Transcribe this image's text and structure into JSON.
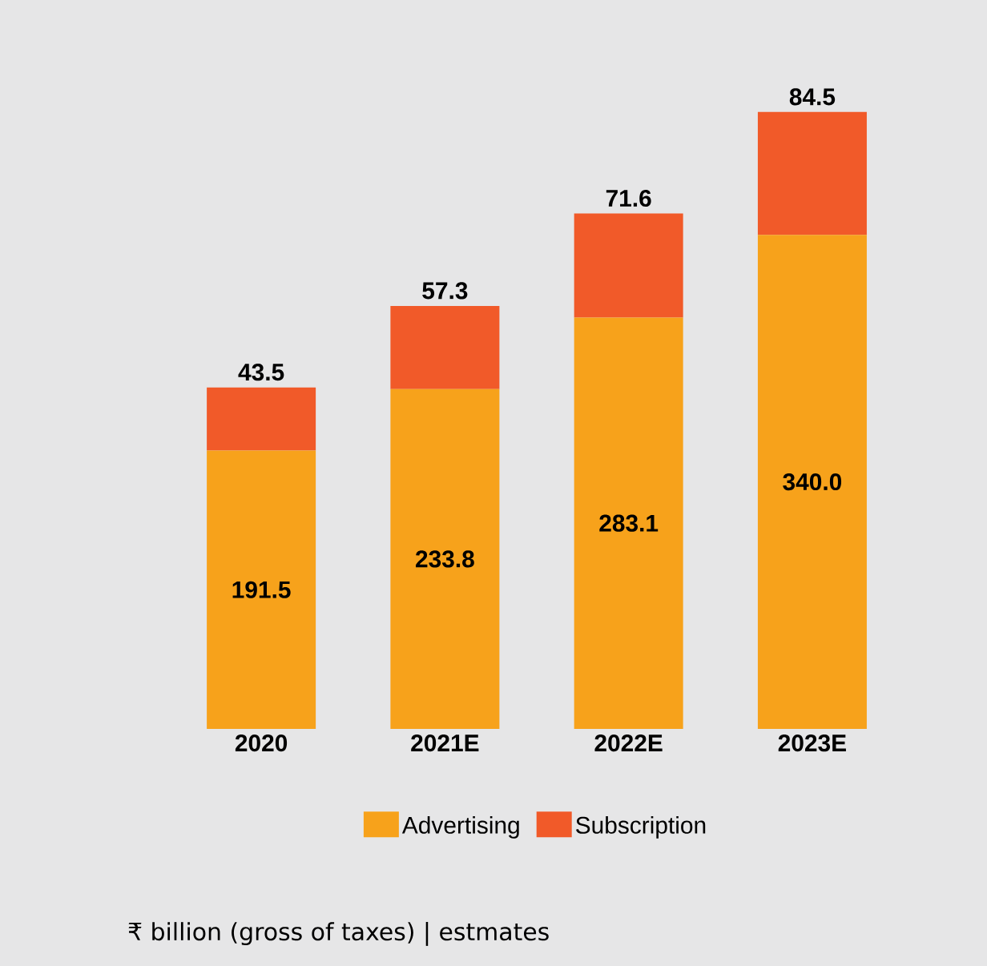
{
  "chart_data": {
    "type": "bar",
    "stacked": true,
    "categories": [
      "2020",
      "2021E",
      "2022E",
      "2023E"
    ],
    "series": [
      {
        "name": "Advertising",
        "color": "#f7a21b",
        "values": [
          191.5,
          233.8,
          283.1,
          340.0
        ],
        "value_labels": [
          "191.5",
          "233.8",
          "283.1",
          "340.0"
        ]
      },
      {
        "name": "Subscription",
        "color": "#f15a29",
        "values": [
          43.5,
          57.3,
          71.6,
          84.5
        ],
        "value_labels": [
          "43.5",
          "57.3",
          "71.6",
          "84.5"
        ]
      }
    ],
    "legend": "bottom",
    "annotations": [
      "₹ billion (gross of taxes) | estmates"
    ]
  }
}
